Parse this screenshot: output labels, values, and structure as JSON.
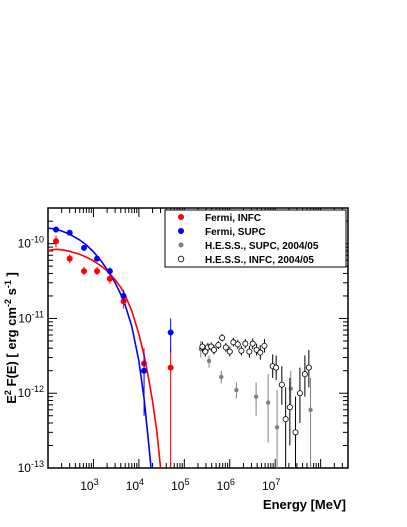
{
  "chart_data": {
    "type": "scatter",
    "x_scale": "log",
    "y_scale": "log",
    "xlim": [
      100,
      400000000
    ],
    "ylim": [
      1e-13,
      3e-10
    ],
    "xlabel": "Energy [MeV]",
    "ylabel": "E^2 F(E) [ erg cm^-2 s^-1 ]",
    "ylabel_parts": {
      "pre": "E",
      "sup1": "2",
      "mid": " F(E) [ erg cm",
      "sup2": "-2",
      "mid2": " s",
      "sup3": "-1",
      "post": " ]"
    },
    "x_ticks": [
      {
        "value": 1000,
        "base": "10",
        "exp": "3"
      },
      {
        "value": 10000,
        "base": "10",
        "exp": "4"
      },
      {
        "value": 100000,
        "base": "10",
        "exp": "5"
      },
      {
        "value": 1000000,
        "base": "10",
        "exp": "6"
      },
      {
        "value": 10000000,
        "base": "10",
        "exp": "7"
      }
    ],
    "y_ticks": [
      {
        "value": 1e-13,
        "base": "10",
        "exp": "-13"
      },
      {
        "value": 1e-12,
        "base": "10",
        "exp": "-12"
      },
      {
        "value": 1e-11,
        "base": "10",
        "exp": "-11"
      },
      {
        "value": 1e-10,
        "base": "10",
        "exp": "-10"
      }
    ],
    "legend_position": "top-right",
    "series": [
      {
        "name": "Fermi, INFC",
        "color": "#ff0000",
        "marker": "filled-circle",
        "points": [
          {
            "x": 150,
            "y": 1.08e-10,
            "ylo": 9e-11,
            "yhi": 1.28e-10
          },
          {
            "x": 300,
            "y": 6.3e-11,
            "ylo": 5.5e-11,
            "yhi": 7.2e-11
          },
          {
            "x": 620,
            "y": 4.3e-11,
            "ylo": 3.8e-11,
            "yhi": 4.9e-11
          },
          {
            "x": 1200,
            "y": 4.3e-11,
            "ylo": 3.8e-11,
            "yhi": 4.9e-11
          },
          {
            "x": 2300,
            "y": 3.4e-11,
            "ylo": 2.9e-11,
            "yhi": 3.9e-11
          },
          {
            "x": 4600,
            "y": 1.7e-11,
            "ylo": 1.35e-11,
            "yhi": 2.1e-11
          },
          {
            "x": 13000,
            "y": 2.5e-12,
            "ylo": 1.3e-12,
            "yhi": 4e-12
          },
          {
            "x": 50000,
            "y": 2.2e-12,
            "ylo": 1e-13,
            "yhi": 4e-12
          }
        ]
      },
      {
        "name": "Fermi, SUPC",
        "color": "#0000ff",
        "marker": "filled-circle",
        "points": [
          {
            "x": 150,
            "y": 1.55e-10,
            "ylo": 1.4e-10,
            "yhi": 1.7e-10
          },
          {
            "x": 300,
            "y": 1.4e-10,
            "ylo": 1.3e-10,
            "yhi": 1.5e-10
          },
          {
            "x": 620,
            "y": 8.8e-11,
            "ylo": 8.2e-11,
            "yhi": 9.4e-11
          },
          {
            "x": 1200,
            "y": 6.3e-11,
            "ylo": 5.8e-11,
            "yhi": 6.8e-11
          },
          {
            "x": 2300,
            "y": 4.3e-11,
            "ylo": 3.9e-11,
            "yhi": 4.8e-11
          },
          {
            "x": 4600,
            "y": 2e-11,
            "ylo": 1.7e-11,
            "yhi": 2.4e-11
          },
          {
            "x": 13000,
            "y": 2e-12,
            "ylo": 5e-13,
            "yhi": 3.5e-12
          },
          {
            "x": 50000,
            "y": 6.5e-12,
            "ylo": 3.5e-12,
            "yhi": 1e-11
          }
        ]
      },
      {
        "name": "H.E.S.S., SUPC, 2004/05",
        "color": "#808080",
        "marker": "filled-circle-small",
        "points": [
          {
            "x": 230000,
            "y": 3.9e-12,
            "ylo": 3e-12,
            "yhi": 5e-12
          },
          {
            "x": 350000,
            "y": 2.7e-12,
            "ylo": 2.2e-12,
            "yhi": 3.2e-12
          },
          {
            "x": 650000,
            "y": 1.65e-12,
            "ylo": 1.35e-12,
            "yhi": 2e-12
          },
          {
            "x": 1400000,
            "y": 1.1e-12,
            "ylo": 8.5e-13,
            "yhi": 1.4e-12
          },
          {
            "x": 3800000,
            "y": 9e-13,
            "ylo": 5e-13,
            "yhi": 1.4e-12
          },
          {
            "x": 7000000,
            "y": 7.5e-13,
            "ylo": 2.2e-13,
            "yhi": 1.8e-12
          },
          {
            "x": 11000000,
            "y": 3.5e-13,
            "ylo": 1e-13,
            "yhi": 1.1e-12
          },
          {
            "x": 22000000,
            "y": 1.15e-12,
            "ylo": 6e-13,
            "yhi": 2e-12
          },
          {
            "x": 60000000,
            "y": 6e-13,
            "ylo": 1e-13,
            "yhi": 1.6e-12
          }
        ]
      },
      {
        "name": "H.E.S.S., INFC, 2004/05",
        "color": "#000000",
        "marker": "open-circle",
        "points": [
          {
            "x": 250000,
            "y": 4.2e-12,
            "ylo": 3.6e-12,
            "yhi": 4.9e-12
          },
          {
            "x": 290000,
            "y": 3.6e-12,
            "ylo": 3.1e-12,
            "yhi": 4.2e-12
          },
          {
            "x": 330000,
            "y": 4.1e-12,
            "ylo": 3.6e-12,
            "yhi": 4.7e-12
          },
          {
            "x": 390000,
            "y": 4.2e-12,
            "ylo": 3.7e-12,
            "yhi": 4.8e-12
          },
          {
            "x": 450000,
            "y": 3.8e-12,
            "ylo": 3.3e-12,
            "yhi": 4.4e-12
          },
          {
            "x": 560000,
            "y": 4.4e-12,
            "ylo": 3.9e-12,
            "yhi": 5e-12
          },
          {
            "x": 680000,
            "y": 5.5e-12,
            "ylo": 4.9e-12,
            "yhi": 6.2e-12
          },
          {
            "x": 820000,
            "y": 4.1e-12,
            "ylo": 3.6e-12,
            "yhi": 4.7e-12
          },
          {
            "x": 1000000,
            "y": 3.6e-12,
            "ylo": 3.1e-12,
            "yhi": 4.2e-12
          },
          {
            "x": 1200000,
            "y": 4.8e-12,
            "ylo": 4.2e-12,
            "yhi": 5.5e-12
          },
          {
            "x": 1500000,
            "y": 4.5e-12,
            "ylo": 3.9e-12,
            "yhi": 5.2e-12
          },
          {
            "x": 1800000,
            "y": 3.7e-12,
            "ylo": 3.2e-12,
            "yhi": 4.3e-12
          },
          {
            "x": 2200000,
            "y": 4.6e-12,
            "ylo": 4e-12,
            "yhi": 5.3e-12
          },
          {
            "x": 2700000,
            "y": 3.6e-12,
            "ylo": 3e-12,
            "yhi": 4.3e-12
          },
          {
            "x": 3200000,
            "y": 4.6e-12,
            "ylo": 3.9e-12,
            "yhi": 5.4e-12
          },
          {
            "x": 3900000,
            "y": 3.8e-12,
            "ylo": 3.2e-12,
            "yhi": 4.6e-12
          },
          {
            "x": 4700000,
            "y": 3.5e-12,
            "ylo": 2.8e-12,
            "yhi": 4.4e-12
          },
          {
            "x": 5800000,
            "y": 4.3e-12,
            "ylo": 3.5e-12,
            "yhi": 5.3e-12
          },
          {
            "x": 8800000,
            "y": 2.3e-12,
            "ylo": 1.6e-12,
            "yhi": 3.3e-12
          },
          {
            "x": 10500000,
            "y": 2.2e-12,
            "ylo": 1.5e-12,
            "yhi": 3.2e-12
          },
          {
            "x": 14000000,
            "y": 1.3e-12,
            "ylo": 7e-13,
            "yhi": 2.3e-12
          },
          {
            "x": 17000000,
            "y": 4.5e-13,
            "ylo": 1e-13,
            "yhi": 1.2e-12
          },
          {
            "x": 21000000,
            "y": 6.5e-13,
            "ylo": 2e-13,
            "yhi": 1.6e-12
          },
          {
            "x": 28000000,
            "y": 3e-13,
            "ylo": 1e-13,
            "yhi": 9e-13
          },
          {
            "x": 35000000,
            "y": 1e-12,
            "ylo": 4e-13,
            "yhi": 2.2e-12
          },
          {
            "x": 45000000,
            "y": 1.8e-12,
            "ylo": 9e-13,
            "yhi": 3.2e-12
          },
          {
            "x": 55000000,
            "y": 2.2e-12,
            "ylo": 1.2e-12,
            "yhi": 3.8e-12
          }
        ]
      }
    ],
    "curves": [
      {
        "color": "#ff0000",
        "points": [
          [
            100,
            8.1e-11
          ],
          [
            150,
            8.4e-11
          ],
          [
            200,
            8.3e-11
          ],
          [
            300,
            7.9e-11
          ],
          [
            500,
            7.2e-11
          ],
          [
            700,
            6.6e-11
          ],
          [
            1000,
            5.9e-11
          ],
          [
            1500,
            5e-11
          ],
          [
            2000,
            4.3e-11
          ],
          [
            3000,
            3.3e-11
          ],
          [
            4000,
            2.6e-11
          ],
          [
            5000,
            2.05e-11
          ],
          [
            7000,
            1.25e-11
          ],
          [
            10000,
            6.2e-12
          ],
          [
            13000,
            3.2e-12
          ],
          [
            16000,
            1.7e-12
          ],
          [
            20000,
            7.8e-13
          ],
          [
            25000,
            3e-13
          ],
          [
            30000,
            1e-13
          ]
        ]
      },
      {
        "color": "#0000ff",
        "points": [
          [
            100,
            1.62e-10
          ],
          [
            150,
            1.56e-10
          ],
          [
            200,
            1.48e-10
          ],
          [
            300,
            1.34e-10
          ],
          [
            500,
            1.12e-10
          ],
          [
            700,
            9.6e-11
          ],
          [
            1000,
            7.8e-11
          ],
          [
            1500,
            5.8e-11
          ],
          [
            2000,
            4.5e-11
          ],
          [
            3000,
            3e-11
          ],
          [
            4000,
            2.1e-11
          ],
          [
            5000,
            1.5e-11
          ],
          [
            7000,
            7.8e-12
          ],
          [
            10000,
            2.7e-12
          ],
          [
            13000,
            8.5e-13
          ],
          [
            16000,
            2.5e-13
          ],
          [
            18500,
            1e-13
          ]
        ]
      }
    ]
  }
}
